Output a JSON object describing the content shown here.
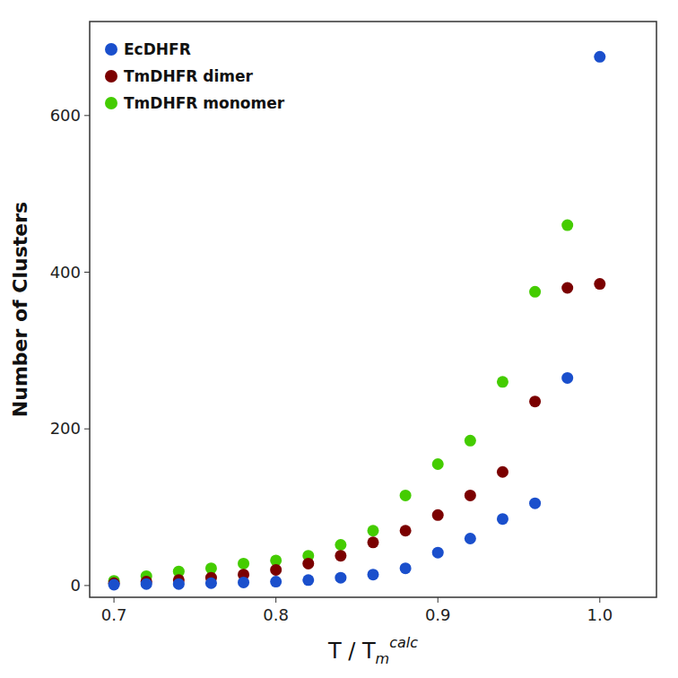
{
  "chart_data": {
    "type": "scatter",
    "x_label": {
      "text": "T / T",
      "sub": "m",
      "sup": "calc"
    },
    "y_label": "Number of Clusters",
    "x": [
      0.7,
      0.72,
      0.74,
      0.76,
      0.78,
      0.8,
      0.82,
      0.84,
      0.86,
      0.88,
      0.9,
      0.92,
      0.94,
      0.96,
      0.98,
      1.0
    ],
    "series": [
      {
        "name": "EcDHFR",
        "color": "#1a4fcc",
        "values": [
          1,
          2,
          2,
          3,
          4,
          5,
          7,
          10,
          14,
          22,
          42,
          60,
          85,
          105,
          265,
          675
        ]
      },
      {
        "name": "TmDHFR dimer",
        "color": "#7B0000",
        "values": [
          3,
          5,
          7,
          10,
          14,
          20,
          28,
          38,
          55,
          70,
          90,
          115,
          145,
          235,
          380,
          385
        ]
      },
      {
        "name": "TmDHFR monomer",
        "color": "#44CC00",
        "values": [
          6,
          12,
          18,
          22,
          28,
          32,
          38,
          52,
          70,
          115,
          155,
          185,
          260,
          375,
          460,
          null
        ]
      }
    ],
    "xlim": [
      0.685,
      1.035
    ],
    "ylim": [
      -15,
      720
    ],
    "xticks": [
      0.7,
      0.8,
      0.9,
      {
        "value": 1.0,
        "label": "1.0"
      }
    ],
    "yticks": [
      0,
      200,
      400,
      600
    ],
    "grid": false,
    "legend": "upper left"
  }
}
